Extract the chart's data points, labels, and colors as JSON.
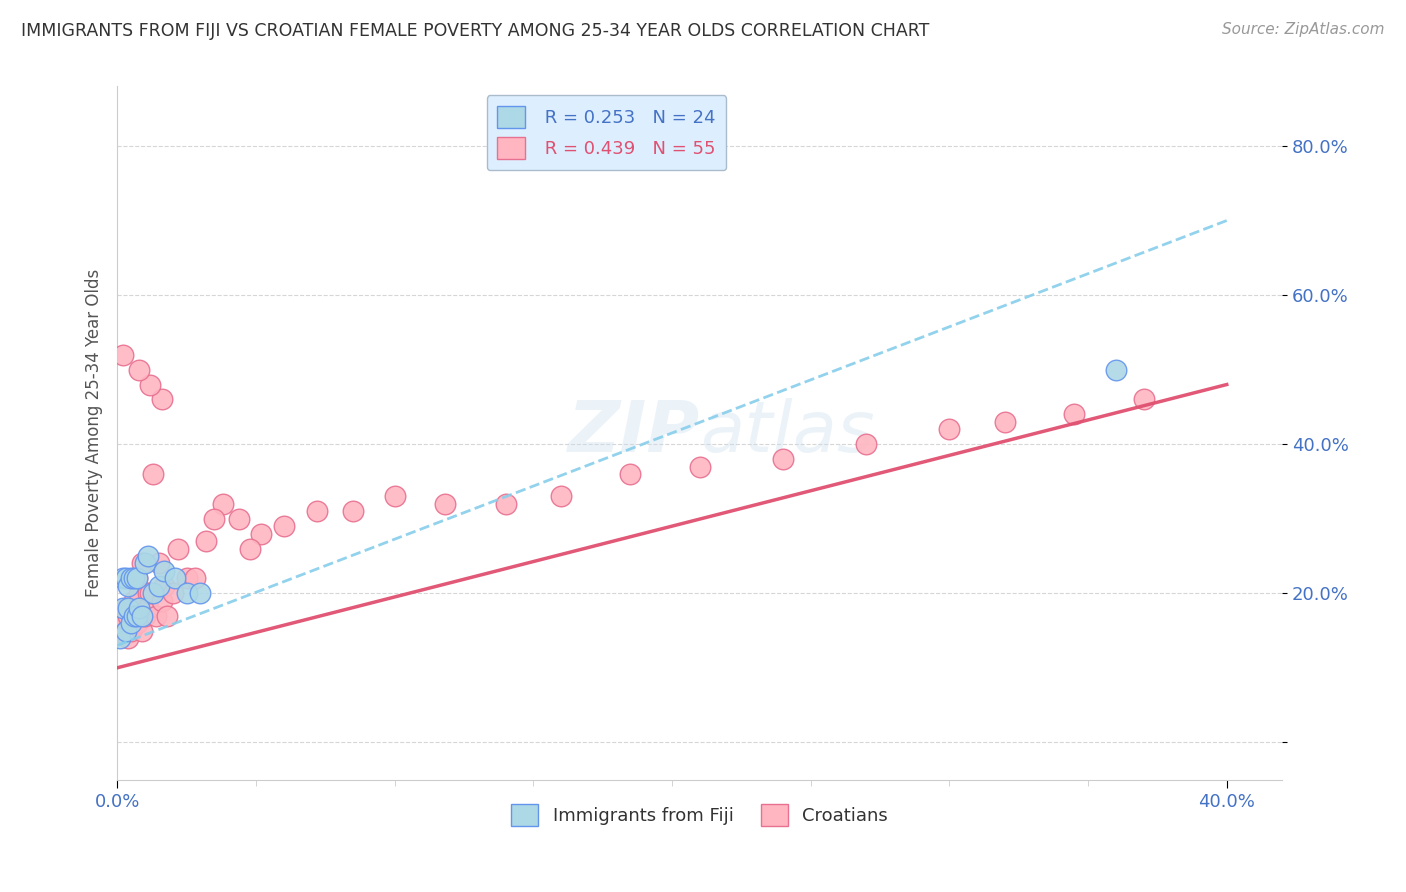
{
  "title": "IMMIGRANTS FROM FIJI VS CROATIAN FEMALE POVERTY AMONG 25-34 YEAR OLDS CORRELATION CHART",
  "source": "Source: ZipAtlas.com",
  "ylabel": "Female Poverty Among 25-34 Year Olds",
  "xlim": [
    0.0,
    0.42
  ],
  "ylim": [
    -0.05,
    0.88
  ],
  "fiji_color": "#add8e6",
  "croatian_color": "#ffb6c1",
  "fiji_edge": "#6495ED",
  "croatian_edge": "#e87090",
  "fiji_R": 0.253,
  "fiji_N": 24,
  "croatian_R": 0.439,
  "croatian_N": 55,
  "background_color": "#ffffff",
  "grid_color": "#cccccc",
  "legend_box_color": "#ddeeff",
  "legend_border_color": "#aabbcc",
  "fiji_line_color": "#87CEEB",
  "croatian_line_color": "#e05070",
  "fiji_scatter_x": [
    0.001,
    0.002,
    0.002,
    0.003,
    0.003,
    0.004,
    0.004,
    0.005,
    0.005,
    0.006,
    0.006,
    0.007,
    0.007,
    0.008,
    0.009,
    0.01,
    0.011,
    0.013,
    0.015,
    0.017,
    0.021,
    0.025,
    0.03,
    0.36
  ],
  "fiji_scatter_y": [
    0.14,
    0.18,
    0.22,
    0.15,
    0.22,
    0.18,
    0.21,
    0.16,
    0.22,
    0.17,
    0.22,
    0.17,
    0.22,
    0.18,
    0.17,
    0.24,
    0.25,
    0.2,
    0.21,
    0.23,
    0.22,
    0.2,
    0.2,
    0.5
  ],
  "croatian_scatter_x": [
    0.001,
    0.002,
    0.002,
    0.003,
    0.003,
    0.004,
    0.004,
    0.005,
    0.005,
    0.006,
    0.006,
    0.007,
    0.007,
    0.008,
    0.008,
    0.009,
    0.009,
    0.01,
    0.011,
    0.011,
    0.012,
    0.013,
    0.014,
    0.015,
    0.016,
    0.017,
    0.018,
    0.02,
    0.022,
    0.025,
    0.028,
    0.032,
    0.038,
    0.044,
    0.052,
    0.06,
    0.072,
    0.085,
    0.1,
    0.118,
    0.14,
    0.16,
    0.185,
    0.21,
    0.24,
    0.27,
    0.3,
    0.32,
    0.345,
    0.37,
    0.048,
    0.035,
    0.016,
    0.012,
    0.008
  ],
  "croatian_scatter_y": [
    0.16,
    0.52,
    0.16,
    0.15,
    0.18,
    0.14,
    0.17,
    0.18,
    0.15,
    0.19,
    0.17,
    0.16,
    0.22,
    0.18,
    0.2,
    0.24,
    0.15,
    0.17,
    0.2,
    0.18,
    0.2,
    0.36,
    0.17,
    0.24,
    0.19,
    0.21,
    0.17,
    0.2,
    0.26,
    0.22,
    0.22,
    0.27,
    0.32,
    0.3,
    0.28,
    0.29,
    0.31,
    0.31,
    0.33,
    0.32,
    0.32,
    0.33,
    0.36,
    0.37,
    0.38,
    0.4,
    0.42,
    0.43,
    0.44,
    0.46,
    0.26,
    0.3,
    0.46,
    0.48,
    0.5
  ],
  "fiji_line_x0": 0.0,
  "fiji_line_y0": 0.13,
  "fiji_line_x1": 0.4,
  "fiji_line_y1": 0.7,
  "cro_line_x0": 0.0,
  "cro_line_y0": 0.1,
  "cro_line_x1": 0.4,
  "cro_line_y1": 0.48
}
